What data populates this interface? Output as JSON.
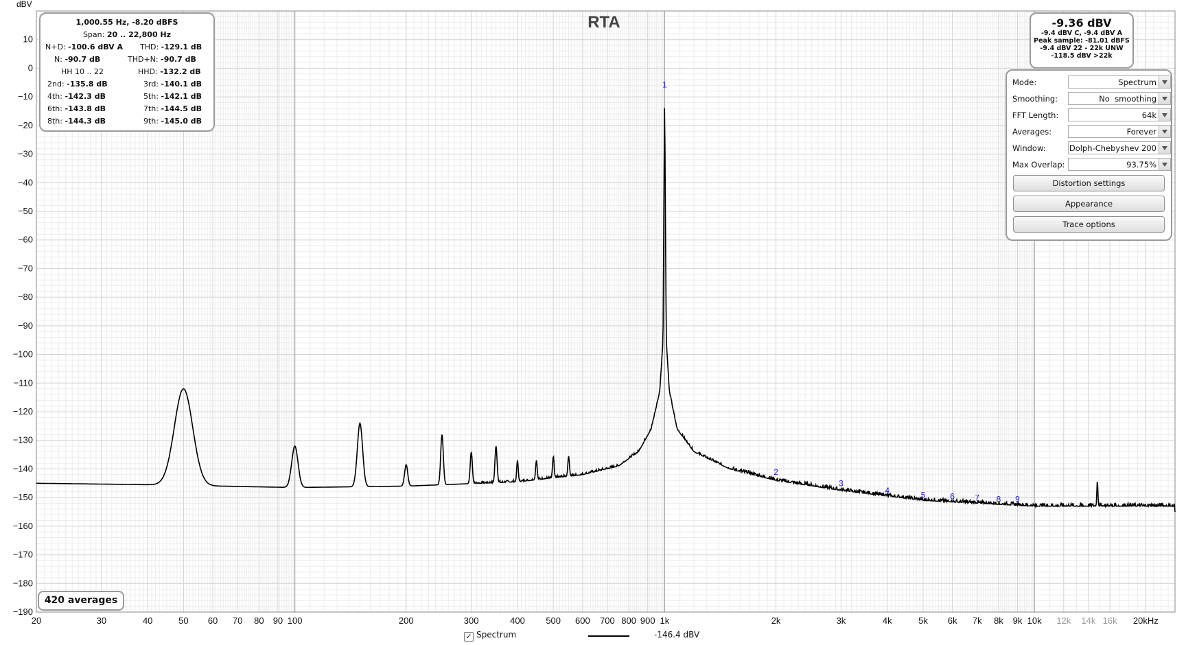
{
  "chart_data": {
    "type": "line",
    "title": "RTA",
    "xlabel": "",
    "ylabel": "dBV",
    "x_scale": "log",
    "xlim": [
      20,
      24000
    ],
    "ylim": [
      -190,
      20
    ],
    "grid": true,
    "x_major_ticks": [
      {
        "value": 20,
        "label": "20"
      },
      {
        "value": 30,
        "label": "30"
      },
      {
        "value": 40,
        "label": "40"
      },
      {
        "value": 50,
        "label": "50"
      },
      {
        "value": 60,
        "label": "60"
      },
      {
        "value": 70,
        "label": "70"
      },
      {
        "value": 80,
        "label": "80"
      },
      {
        "value": 90,
        "label": "90"
      },
      {
        "value": 100,
        "label": "100"
      },
      {
        "value": 200,
        "label": "200"
      },
      {
        "value": 300,
        "label": "300"
      },
      {
        "value": 400,
        "label": "400"
      },
      {
        "value": 500,
        "label": "500"
      },
      {
        "value": 600,
        "label": "600"
      },
      {
        "value": 700,
        "label": "700"
      },
      {
        "value": 800,
        "label": "800"
      },
      {
        "value": 900,
        "label": "900"
      },
      {
        "value": 1000,
        "label": "1k"
      },
      {
        "value": 2000,
        "label": "2k"
      },
      {
        "value": 3000,
        "label": "3k"
      },
      {
        "value": 4000,
        "label": "4k"
      },
      {
        "value": 5000,
        "label": "5k"
      },
      {
        "value": 6000,
        "label": "6k"
      },
      {
        "value": 7000,
        "label": "7k"
      },
      {
        "value": 8000,
        "label": "8k"
      },
      {
        "value": 9000,
        "label": "9k"
      },
      {
        "value": 10000,
        "label": "10k"
      },
      {
        "value": 12000,
        "label": "12k",
        "faded": true
      },
      {
        "value": 14000,
        "label": "14k",
        "faded": true
      },
      {
        "value": 16000,
        "label": "16k",
        "faded": true
      },
      {
        "value": 20000,
        "label": "20kHz"
      }
    ],
    "y_ticks": [
      10,
      0,
      -10,
      -20,
      -30,
      -40,
      -50,
      -60,
      -70,
      -80,
      -90,
      -100,
      -110,
      -120,
      -130,
      -140,
      -150,
      -160,
      -170,
      -180,
      -190
    ],
    "series": [
      {
        "name": "Spectrum",
        "color": "#000000",
        "noise_floor": [
          [
            20,
            -145
          ],
          [
            40,
            -145.5
          ],
          [
            100,
            -146.5
          ],
          [
            200,
            -146
          ],
          [
            400,
            -144.5
          ],
          [
            600,
            -142
          ],
          [
            750,
            -139
          ],
          [
            850,
            -134
          ],
          [
            920,
            -126
          ],
          [
            970,
            -113
          ],
          [
            990,
            -95
          ],
          [
            1000,
            -8.2
          ],
          [
            1010,
            -95
          ],
          [
            1030,
            -113
          ],
          [
            1080,
            -126
          ],
          [
            1200,
            -134
          ],
          [
            1500,
            -140
          ],
          [
            2000,
            -144
          ],
          [
            3000,
            -147.5
          ],
          [
            5000,
            -151
          ],
          [
            10000,
            -153
          ],
          [
            24000,
            -153
          ]
        ],
        "peaks": [
          {
            "f": 50,
            "level": -112,
            "width": 0.035
          },
          {
            "f": 100,
            "level": -132,
            "width": 0.012
          },
          {
            "f": 150,
            "level": -124,
            "width": 0.01
          },
          {
            "f": 200,
            "level": -138.5,
            "width": 0.006
          },
          {
            "f": 250,
            "level": -128,
            "width": 0.005
          },
          {
            "f": 300,
            "level": -134,
            "width": 0.004
          },
          {
            "f": 350,
            "level": -132,
            "width": 0.004
          },
          {
            "f": 400,
            "level": -137,
            "width": 0.003
          },
          {
            "f": 450,
            "level": -137,
            "width": 0.003
          },
          {
            "f": 500,
            "level": -135.5,
            "width": 0.003
          },
          {
            "f": 550,
            "level": -135.5,
            "width": 0.003
          },
          {
            "f": 14800,
            "level": -144,
            "width": 0.002
          }
        ],
        "end_level": -155
      }
    ],
    "harmonic_markers": [
      {
        "label": "1",
        "f": 1000,
        "level": -8.2
      },
      {
        "label": "2",
        "f": 2000,
        "level": -143.5
      },
      {
        "label": "3",
        "f": 3000,
        "level": -147.5
      },
      {
        "label": "4",
        "f": 4000,
        "level": -150
      },
      {
        "label": "5",
        "f": 5000,
        "level": -151.5
      },
      {
        "label": "6",
        "f": 6000,
        "level": -152
      },
      {
        "label": "7",
        "f": 7000,
        "level": -152.5
      },
      {
        "label": "8",
        "f": 8000,
        "level": -153
      },
      {
        "label": "9",
        "f": 9000,
        "level": -153
      }
    ],
    "legend": {
      "position": "bottom",
      "checked": true,
      "name": "Spectrum",
      "value": "-146.4 dBV"
    }
  },
  "stats_box": {
    "line1": "1,000.55 Hz, -8.20 dBFS",
    "span_label": "Span:",
    "span_value": "20 .. 22,800 Hz",
    "nd_label": "N+D:",
    "nd_value": "-100.6 dBV A",
    "thd_label": "THD:",
    "thd_value": "-129.1 dB",
    "n_label": "N:",
    "n_value": "-90.7 dB",
    "thdn_label": "THD+N:",
    "thdn_value": "-90.7 dB",
    "hh_label": "HH 10 .. 22",
    "hhd_label": "HHD:",
    "hhd_value": "-132.2 dB",
    "harmonics": [
      {
        "l1": "2nd:",
        "v1": "-135.8 dB",
        "l2": "3rd:",
        "v2": "-140.1 dB"
      },
      {
        "l1": "4th:",
        "v1": "-142.3 dB",
        "l2": "5th:",
        "v2": "-142.1 dB"
      },
      {
        "l1": "6th:",
        "v1": "-143.8 dB",
        "l2": "7th:",
        "v2": "-144.5 dB"
      },
      {
        "l1": "8th:",
        "v1": "-144.3 dB",
        "l2": "9th:",
        "v2": "-145.0 dB"
      }
    ]
  },
  "level_box": {
    "main": "-9.36 dBV",
    "line1": "-9.4 dBV C, -9.4 dBV A",
    "line2": "Peak sample: -81.01 dBFS",
    "line3": "-9.4 dBV 22 - 22k UNW",
    "line4": "-118.5 dBV >22k"
  },
  "settings_panel": {
    "rows": [
      {
        "label": "Mode:",
        "value": "Spectrum"
      },
      {
        "label": "Smoothing:",
        "value": "No  smoothing"
      },
      {
        "label": "FFT Length:",
        "value": "64k"
      },
      {
        "label": "Averages:",
        "value": "Forever"
      },
      {
        "label": "Window:",
        "value": "Dolph-Chebyshev 200"
      },
      {
        "label": "Max Overlap:",
        "value": "93.75%"
      }
    ],
    "buttons": [
      "Distortion settings",
      "Appearance",
      "Trace options"
    ]
  },
  "averages_badge": "420 averages"
}
